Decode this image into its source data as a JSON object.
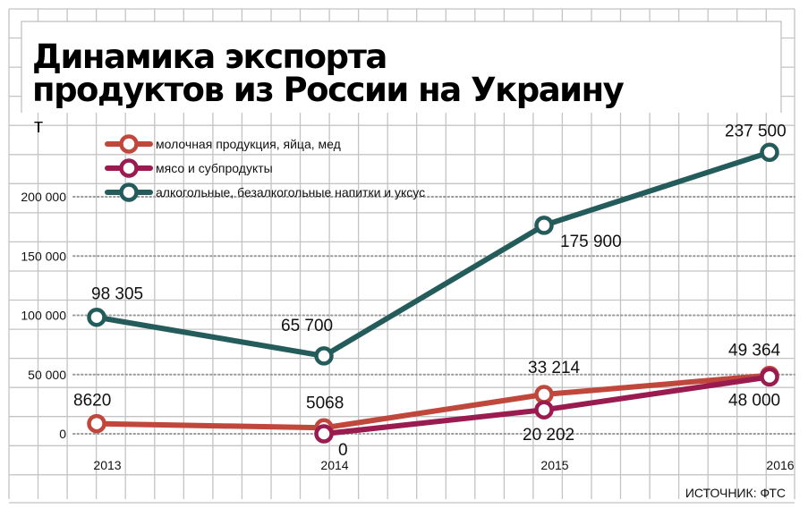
{
  "chart_data": {
    "type": "line",
    "title_lines": [
      "Динамика экспорта",
      "продуктов из России на Украину"
    ],
    "unit_label": "т",
    "xlabel": "",
    "ylabel": "т",
    "x": [
      "2013",
      "2014",
      "2015",
      "2016"
    ],
    "ylim": [
      0,
      250000
    ],
    "yticks": [
      0,
      50000,
      100000,
      150000,
      200000
    ],
    "ytick_labels": [
      "0",
      "50 000",
      "100 000",
      "150 000",
      "200 000"
    ],
    "grid": true,
    "legend_position": "top-left",
    "series": [
      {
        "name": "молочная продукция, яйца, мед",
        "color": "#c0473c",
        "values": [
          8620,
          5068,
          33214,
          49364
        ],
        "labels": [
          "8620",
          "5068",
          "33 214",
          "49 364"
        ]
      },
      {
        "name": "мясо и субпродукты",
        "color": "#9a1b4f",
        "values": [
          null,
          0,
          20202,
          48000
        ],
        "labels": [
          "",
          "0",
          "20 202",
          "48 000"
        ]
      },
      {
        "name": "алкогольные, безалкогольные напитки и уксус",
        "color": "#235c5a",
        "values": [
          98305,
          65700,
          175900,
          237500
        ],
        "labels": [
          "98 305",
          "65 700",
          "175 900",
          "237 500"
        ]
      }
    ],
    "source": "ИСТОЧНИК: ФТС"
  }
}
